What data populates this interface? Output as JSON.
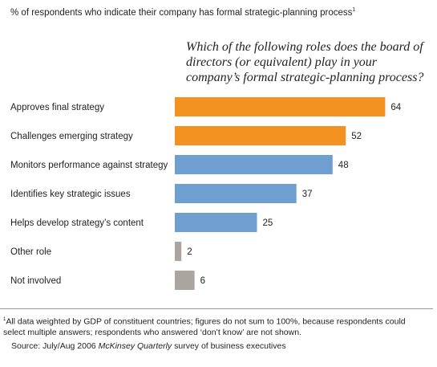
{
  "subtitle": "% of respondents who indicate their company has formal strategic-planning process",
  "subtitle_note_mark": "1",
  "question": "Which of the following roles does the board of directors (or equivalent) play in your company’s formal strategic-planning process?",
  "chart_data": {
    "type": "bar",
    "orientation": "horizontal",
    "categories": [
      "Approves final strategy",
      "Challenges emerging strategy",
      "Monitors performance against strategy",
      "Identifies key strategic issues",
      "Helps develop strategy’s content",
      "Other role",
      "Not involved"
    ],
    "values": [
      64,
      52,
      48,
      37,
      25,
      2,
      6
    ],
    "colors": [
      "#F39220",
      "#F39220",
      "#6F9FD1",
      "#6F9FD1",
      "#6F9FD1",
      "#AAA59E",
      "#AAA59E"
    ],
    "xlim": [
      0,
      70
    ],
    "grid": false,
    "legend": "none"
  },
  "footnote_mark": "1",
  "footnote": "All data weighted by GDP of constituent countries; figures do not sum to 100%, because respondents could select multiple answers; respondents who answered ‘don’t know’ are not shown.",
  "source_prefix": "Source: July/Aug 2006 ",
  "source_publication": "McKinsey Quarterly",
  "source_suffix": " survey of business executives"
}
